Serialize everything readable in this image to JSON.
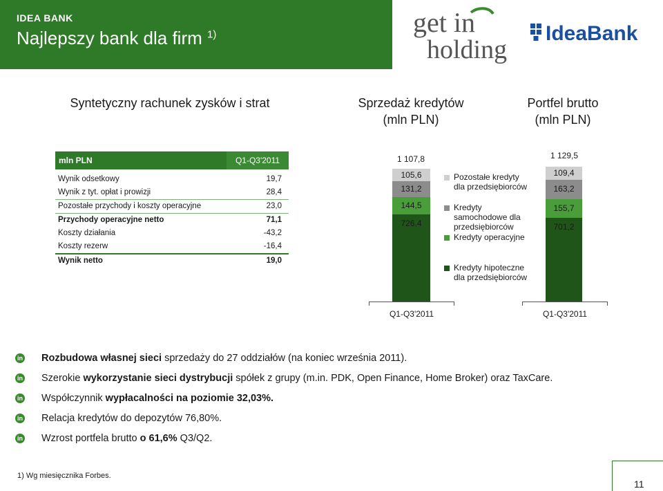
{
  "header": {
    "subtitle": "IDEA BANK",
    "title": "Najlepszy bank dla firm",
    "title_sup": "1)",
    "logo_get_top": "get in",
    "logo_get_bottom": "holding",
    "logo_idea": "IdeaBank"
  },
  "sections": {
    "pl_title": "Syntetyczny rachunek zysków i strat",
    "sales_title_1": "Sprzedaż kredytów",
    "sales_title_2": "(mln PLN)",
    "portfolio_title_1": "Portfel brutto",
    "portfolio_title_2": "(mln PLN)"
  },
  "pl_table": {
    "header_label": "mln PLN",
    "header_period": "Q1-Q3'2011",
    "rows": [
      {
        "label": "Wynik odsetkowy",
        "value": "19,7"
      },
      {
        "label": "Wynik z tyt. opłat i prowizji",
        "value": "28,4"
      },
      {
        "label": "Pozostałe przychody i koszty operacyjne",
        "value": "23,0"
      },
      {
        "label": "Przychody operacyjne netto",
        "value": "71,1"
      },
      {
        "label": "Koszty działania",
        "value": "-43,2"
      },
      {
        "label": "Koszty rezerw",
        "value": "-16,4"
      },
      {
        "label": "Wynik netto",
        "value": "19,0"
      }
    ]
  },
  "colors": {
    "brand_green": "#2e7a28",
    "seg_other": "#cfcfcf",
    "seg_car": "#8c8c8c",
    "seg_operating": "#4a9e3a",
    "seg_mortgage": "#1f5518"
  },
  "legend": [
    {
      "label": "Pozostałe kredyty dla przedsiębiorców",
      "line1": "Pozostałe kredyty",
      "line2": "dla przedsiębiorców",
      "color": "#cfcfcf"
    },
    {
      "label": "Kredyty samochodowe dla przedsiębiorców",
      "line1": "Kredyty",
      "line2": "samochodowe dla",
      "line3": "przedsiębiorców",
      "color": "#8c8c8c"
    },
    {
      "label": "Kredyty operacyjne",
      "line1": "Kredyty operacyjne",
      "color": "#4a9e3a"
    },
    {
      "label": "Kredyty hipoteczne dla przedsiębiorców",
      "line1": "Kredyty hipoteczne",
      "line2": "dla przedsiębiorców",
      "color": "#1f5518"
    }
  ],
  "chart_data": [
    {
      "type": "bar",
      "stacked": true,
      "title": "Sprzedaż kredytów (mln PLN)",
      "categories": [
        "Q1-Q3'2011"
      ],
      "total_label": "1 107,8",
      "series": [
        {
          "name": "Kredyty hipoteczne dla przedsiębiorców",
          "values": [
            726.4
          ],
          "labels": [
            "726,4"
          ]
        },
        {
          "name": "Kredyty operacyjne",
          "values": [
            144.5
          ],
          "labels": [
            "144,5"
          ]
        },
        {
          "name": "Kredyty samochodowe dla przedsiębiorców",
          "values": [
            131.2
          ],
          "labels": [
            "131,2"
          ]
        },
        {
          "name": "Pozostałe kredyty dla przedsiębiorców",
          "values": [
            105.6
          ],
          "labels": [
            "105,6"
          ]
        }
      ],
      "total": 1107.8
    },
    {
      "type": "bar",
      "stacked": true,
      "title": "Portfel brutto (mln PLN)",
      "categories": [
        "Q1-Q3'2011"
      ],
      "total_label": "1 129,5",
      "series": [
        {
          "name": "Kredyty hipoteczne dla przedsiębiorców",
          "values": [
            701.2
          ],
          "labels": [
            "701,2"
          ]
        },
        {
          "name": "Kredyty operacyjne",
          "values": [
            155.7
          ],
          "labels": [
            "155,7"
          ]
        },
        {
          "name": "Kredyty samochodowe dla przedsiębiorców",
          "values": [
            163.2
          ],
          "labels": [
            "163,2"
          ]
        },
        {
          "name": "Pozostałe kredyty dla przedsiębiorców",
          "values": [
            109.4
          ],
          "labels": [
            "109,4"
          ]
        }
      ],
      "total": 1129.5
    }
  ],
  "bullets": [
    {
      "bold1": "Rozbudowa własnej sieci",
      "rest": " sprzedaży do 27 oddziałów (na koniec września 2011)."
    },
    {
      "pre": "Szerokie ",
      "bold1": "wykorzystanie sieci dystrybucji",
      "rest": " spółek z grupy (m.in. PDK, Open  Finance, Home Broker) oraz TaxCare."
    },
    {
      "pre": "Współczynnik ",
      "bold1": "wypłacalności na poziomie 32,03%.",
      "rest": ""
    },
    {
      "pre": "Relacja kredytów do depozytów 76,80%.",
      "bold1": "",
      "rest": ""
    },
    {
      "pre": "Wzrost portfela brutto ",
      "bold1": "o 61,6%",
      "rest": " Q3/Q2."
    }
  ],
  "bullet_icon": "in",
  "footnote": "1)   Wg miesięcznika Forbes.",
  "page_number": "11"
}
